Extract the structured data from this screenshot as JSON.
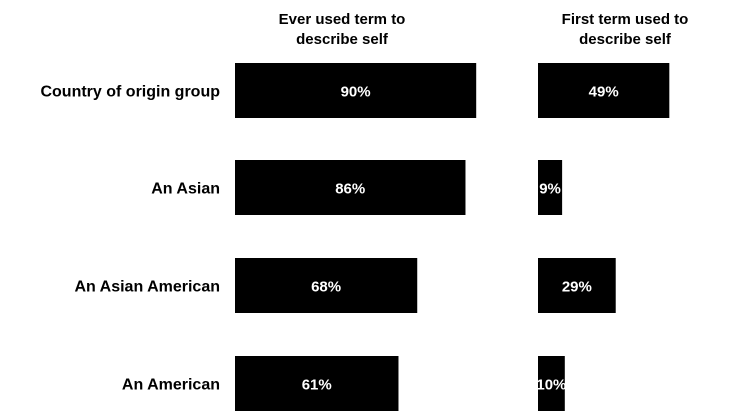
{
  "chart_data": {
    "type": "bar",
    "orientation": "horizontal",
    "categories": [
      "Country of origin group",
      "An Asian",
      "An Asian American",
      "An American"
    ],
    "series": [
      {
        "name": "Ever used term to describe self",
        "values": [
          90,
          86,
          68,
          61
        ],
        "labels": [
          "90%",
          "86%",
          "68%",
          "61%"
        ]
      },
      {
        "name": "First term used to describe self",
        "values": [
          49,
          9,
          29,
          10
        ],
        "labels": [
          "49%",
          "9%",
          "29%",
          "10%"
        ]
      }
    ],
    "column_titles": [
      [
        "Ever used term to",
        "describe self"
      ],
      [
        "First term used to",
        "describe self"
      ]
    ],
    "unit": "%",
    "xlim": [
      0,
      100
    ],
    "bar_color": "#000000",
    "label_color": "#ffffff",
    "legend": "none",
    "grid": false
  }
}
